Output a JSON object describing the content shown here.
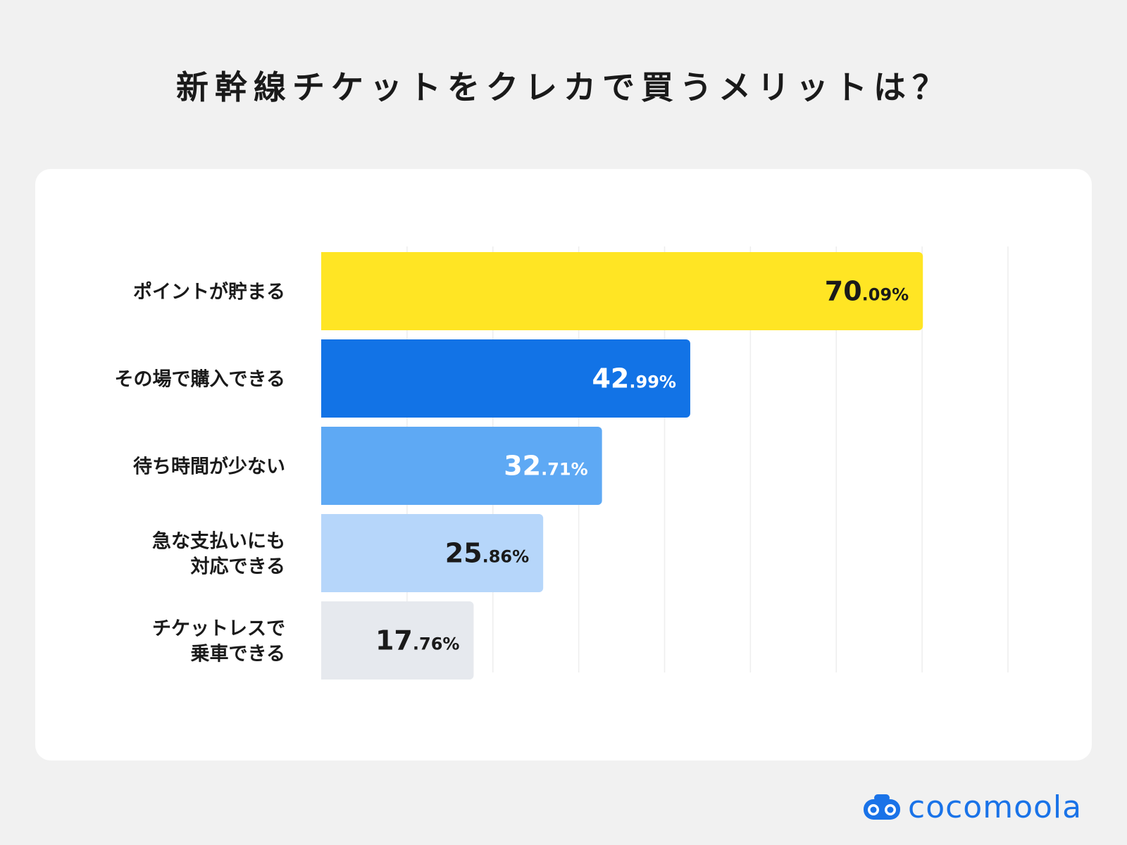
{
  "title": "新幹線チケットをクレカで買うメリットは？",
  "brand": {
    "name": "cocomoola",
    "color": "#1a73e8",
    "icon": "binocular-logo-icon"
  },
  "chart_data": {
    "type": "bar",
    "orientation": "horizontal",
    "categories": [
      [
        "ポイントが貯まる"
      ],
      [
        "その場で購入できる"
      ],
      [
        "待ち時間が少ない"
      ],
      [
        "急な支払いにも",
        "対応できる"
      ],
      [
        "チケットレスで",
        "乗車できる"
      ]
    ],
    "values": [
      70.09,
      42.99,
      32.71,
      25.86,
      17.76
    ],
    "value_labels": [
      {
        "int": "70",
        "dec": ".09%"
      },
      {
        "int": "42",
        "dec": ".99%"
      },
      {
        "int": "32",
        "dec": ".71%"
      },
      {
        "int": "25",
        "dec": ".86%"
      },
      {
        "int": "17",
        "dec": ".76%"
      }
    ],
    "bar_colors": [
      "#ffe524",
      "#1273e6",
      "#5ea9f4",
      "#b6d6fa",
      "#e6e9ee"
    ],
    "label_colors": [
      "#1a1a1a",
      "#ffffff",
      "#ffffff",
      "#1a1a1a",
      "#1a1a1a"
    ],
    "xlim": [
      0,
      80
    ],
    "grid": true,
    "gridline_values": [
      10,
      20,
      30,
      40,
      50,
      60,
      70,
      80
    ]
  }
}
